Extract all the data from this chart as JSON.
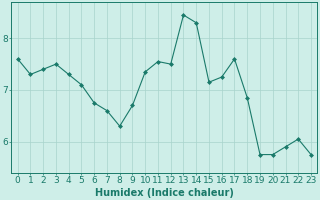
{
  "x": [
    0,
    1,
    2,
    3,
    4,
    5,
    6,
    7,
    8,
    9,
    10,
    11,
    12,
    13,
    14,
    15,
    16,
    17,
    18,
    19,
    20,
    21,
    22,
    23
  ],
  "y": [
    7.6,
    7.3,
    7.4,
    7.5,
    7.3,
    7.1,
    6.75,
    6.6,
    6.3,
    6.7,
    7.35,
    7.55,
    7.5,
    8.45,
    8.3,
    7.15,
    7.25,
    7.6,
    6.85,
    5.75,
    5.75,
    5.9,
    6.05,
    5.75
  ],
  "line_color": "#1a7a6a",
  "marker": "D",
  "marker_size": 2,
  "bg_color": "#ceeee8",
  "grid_color": "#a8d4cc",
  "xlabel": "Humidex (Indice chaleur)",
  "xlabel_fontsize": 7,
  "yticks": [
    6,
    7,
    8
  ],
  "xticks": [
    0,
    1,
    2,
    3,
    4,
    5,
    6,
    7,
    8,
    9,
    10,
    11,
    12,
    13,
    14,
    15,
    16,
    17,
    18,
    19,
    20,
    21,
    22,
    23
  ],
  "xlim": [
    -0.5,
    23.5
  ],
  "ylim": [
    5.4,
    8.7
  ],
  "tick_fontsize": 6.5
}
